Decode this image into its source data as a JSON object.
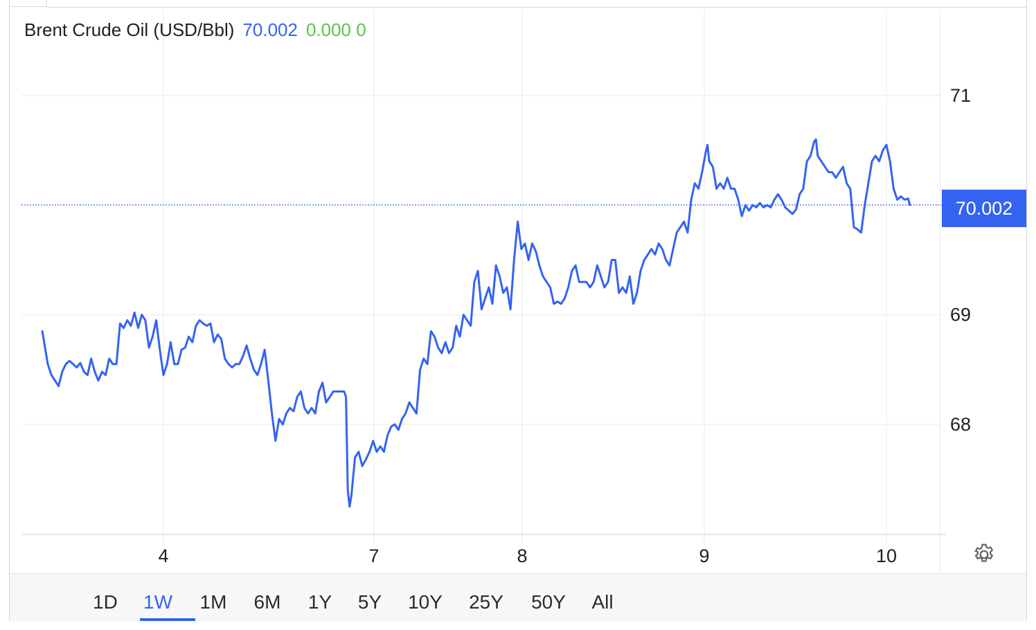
{
  "header": {
    "title": "Brent Crude Oil (USD/Bbl)",
    "last_value": "70.002",
    "change": "0.000",
    "change_pct": "0"
  },
  "price_tag": "70.002",
  "range_selector": {
    "options": [
      "1D",
      "1W",
      "1M",
      "6M",
      "1Y",
      "5Y",
      "10Y",
      "25Y",
      "50Y",
      "All"
    ],
    "selected": "1W"
  },
  "colors": {
    "line": "#3463f0",
    "change_positive": "#5ec24b",
    "grid": "#e6e6e6"
  },
  "icons": [
    "gear-icon"
  ],
  "chart_data": {
    "type": "line",
    "title": "Brent Crude Oil (USD/Bbl)",
    "xlabel": "",
    "ylabel": "",
    "x_ticks": [
      {
        "label": "4",
        "t": 1.0
      },
      {
        "label": "7",
        "t": 2.0
      },
      {
        "label": "8",
        "t": 3.0
      },
      {
        "label": "9",
        "t": 4.0
      },
      {
        "label": "10",
        "t": 5.0
      }
    ],
    "xlim": [
      0.33,
      5.3
    ],
    "ylim": [
      67.0,
      71.5
    ],
    "y_ticks": [
      68,
      69,
      71
    ],
    "last_value_line": 70.002,
    "grid": true,
    "legend": "none",
    "series": [
      {
        "points": [
          [
            0.33,
            68.85
          ],
          [
            0.36,
            68.55
          ],
          [
            0.38,
            68.45
          ],
          [
            0.4,
            68.4
          ],
          [
            0.42,
            68.35
          ],
          [
            0.44,
            68.48
          ],
          [
            0.46,
            68.55
          ],
          [
            0.48,
            68.58
          ],
          [
            0.5,
            68.55
          ],
          [
            0.52,
            68.52
          ],
          [
            0.54,
            68.56
          ],
          [
            0.56,
            68.48
          ],
          [
            0.58,
            68.45
          ],
          [
            0.6,
            68.6
          ],
          [
            0.62,
            68.48
          ],
          [
            0.64,
            68.4
          ],
          [
            0.66,
            68.48
          ],
          [
            0.68,
            68.45
          ],
          [
            0.7,
            68.6
          ],
          [
            0.72,
            68.55
          ],
          [
            0.74,
            68.55
          ],
          [
            0.76,
            68.92
          ],
          [
            0.78,
            68.88
          ],
          [
            0.8,
            68.95
          ],
          [
            0.82,
            68.9
          ],
          [
            0.84,
            69.02
          ],
          [
            0.86,
            68.88
          ],
          [
            0.88,
            69.0
          ],
          [
            0.9,
            68.95
          ],
          [
            0.92,
            68.7
          ],
          [
            0.94,
            68.8
          ],
          [
            0.96,
            68.95
          ],
          [
            0.98,
            68.68
          ],
          [
            1.0,
            68.45
          ],
          [
            1.02,
            68.55
          ],
          [
            1.04,
            68.75
          ],
          [
            1.06,
            68.55
          ],
          [
            1.08,
            68.55
          ],
          [
            1.1,
            68.68
          ],
          [
            1.12,
            68.7
          ],
          [
            1.14,
            68.8
          ],
          [
            1.16,
            68.75
          ],
          [
            1.18,
            68.9
          ],
          [
            1.2,
            68.95
          ],
          [
            1.22,
            68.92
          ],
          [
            1.24,
            68.9
          ],
          [
            1.26,
            68.92
          ],
          [
            1.28,
            68.75
          ],
          [
            1.3,
            68.82
          ],
          [
            1.32,
            68.78
          ],
          [
            1.34,
            68.6
          ],
          [
            1.36,
            68.55
          ],
          [
            1.38,
            68.52
          ],
          [
            1.4,
            68.55
          ],
          [
            1.42,
            68.55
          ],
          [
            1.44,
            68.62
          ],
          [
            1.46,
            68.72
          ],
          [
            1.48,
            68.6
          ],
          [
            1.5,
            68.5
          ],
          [
            1.52,
            68.45
          ],
          [
            1.54,
            68.55
          ],
          [
            1.56,
            68.68
          ],
          [
            1.58,
            68.4
          ],
          [
            1.6,
            68.1
          ],
          [
            1.62,
            67.85
          ],
          [
            1.64,
            68.05
          ],
          [
            1.66,
            68.0
          ],
          [
            1.68,
            68.1
          ],
          [
            1.7,
            68.15
          ],
          [
            1.72,
            68.12
          ],
          [
            1.74,
            68.25
          ],
          [
            1.76,
            68.3
          ],
          [
            1.78,
            68.15
          ],
          [
            1.8,
            68.1
          ],
          [
            1.82,
            68.15
          ],
          [
            1.84,
            68.1
          ],
          [
            1.86,
            68.3
          ],
          [
            1.88,
            68.38
          ],
          [
            1.9,
            68.2
          ],
          [
            1.92,
            68.25
          ],
          [
            1.94,
            68.3
          ],
          [
            1.96,
            68.3
          ],
          [
            1.98,
            68.3
          ],
          [
            2.0,
            68.3
          ],
          [
            2.01,
            68.25
          ],
          [
            2.02,
            67.4
          ],
          [
            2.03,
            67.25
          ],
          [
            2.04,
            67.35
          ],
          [
            2.06,
            67.7
          ],
          [
            2.08,
            67.75
          ],
          [
            2.1,
            67.62
          ],
          [
            2.12,
            67.68
          ],
          [
            2.14,
            67.75
          ],
          [
            2.16,
            67.85
          ],
          [
            2.18,
            67.75
          ],
          [
            2.2,
            67.8
          ],
          [
            2.22,
            67.75
          ],
          [
            2.24,
            67.9
          ],
          [
            2.26,
            67.98
          ],
          [
            2.28,
            68.0
          ],
          [
            2.3,
            67.95
          ],
          [
            2.32,
            68.05
          ],
          [
            2.34,
            68.1
          ],
          [
            2.36,
            68.2
          ],
          [
            2.38,
            68.15
          ],
          [
            2.4,
            68.1
          ],
          [
            2.42,
            68.5
          ],
          [
            2.44,
            68.6
          ],
          [
            2.46,
            68.55
          ],
          [
            2.48,
            68.85
          ],
          [
            2.5,
            68.8
          ],
          [
            2.52,
            68.7
          ],
          [
            2.54,
            68.65
          ],
          [
            2.56,
            68.75
          ],
          [
            2.58,
            68.65
          ],
          [
            2.6,
            68.7
          ],
          [
            2.62,
            68.9
          ],
          [
            2.64,
            68.8
          ],
          [
            2.66,
            69.0
          ],
          [
            2.68,
            68.95
          ],
          [
            2.7,
            68.9
          ],
          [
            2.72,
            69.3
          ],
          [
            2.74,
            69.4
          ],
          [
            2.76,
            69.05
          ],
          [
            2.78,
            69.15
          ],
          [
            2.8,
            69.25
          ],
          [
            2.82,
            69.1
          ],
          [
            2.84,
            69.45
          ],
          [
            2.86,
            69.35
          ],
          [
            2.88,
            69.2
          ],
          [
            2.9,
            69.25
          ],
          [
            2.92,
            69.05
          ],
          [
            2.94,
            69.5
          ],
          [
            2.96,
            69.85
          ],
          [
            2.98,
            69.6
          ],
          [
            3.0,
            69.65
          ],
          [
            3.02,
            69.5
          ],
          [
            3.04,
            69.65
          ],
          [
            3.06,
            69.58
          ],
          [
            3.08,
            69.45
          ],
          [
            3.1,
            69.35
          ],
          [
            3.12,
            69.3
          ],
          [
            3.14,
            69.25
          ],
          [
            3.16,
            69.1
          ],
          [
            3.18,
            69.12
          ],
          [
            3.2,
            69.1
          ],
          [
            3.22,
            69.15
          ],
          [
            3.24,
            69.25
          ],
          [
            3.26,
            69.4
          ],
          [
            3.28,
            69.45
          ],
          [
            3.3,
            69.3
          ],
          [
            3.32,
            69.3
          ],
          [
            3.34,
            69.3
          ],
          [
            3.36,
            69.25
          ],
          [
            3.38,
            69.3
          ],
          [
            3.4,
            69.45
          ],
          [
            3.42,
            69.35
          ],
          [
            3.44,
            69.25
          ],
          [
            3.46,
            69.3
          ],
          [
            3.48,
            69.5
          ],
          [
            3.5,
            69.5
          ],
          [
            3.52,
            69.2
          ],
          [
            3.54,
            69.25
          ],
          [
            3.56,
            69.2
          ],
          [
            3.58,
            69.35
          ],
          [
            3.6,
            69.1
          ],
          [
            3.62,
            69.2
          ],
          [
            3.64,
            69.4
          ],
          [
            3.66,
            69.5
          ],
          [
            3.68,
            69.55
          ],
          [
            3.7,
            69.6
          ],
          [
            3.72,
            69.55
          ],
          [
            3.74,
            69.65
          ],
          [
            3.76,
            69.6
          ],
          [
            3.78,
            69.5
          ],
          [
            3.8,
            69.45
          ],
          [
            3.82,
            69.6
          ],
          [
            3.84,
            69.75
          ],
          [
            3.86,
            69.8
          ],
          [
            3.88,
            69.85
          ],
          [
            3.9,
            69.75
          ],
          [
            3.92,
            70.05
          ],
          [
            3.94,
            70.2
          ],
          [
            3.96,
            70.15
          ],
          [
            3.98,
            70.3
          ],
          [
            4.0,
            70.48
          ],
          [
            4.01,
            70.55
          ],
          [
            4.02,
            70.4
          ],
          [
            4.04,
            70.35
          ],
          [
            4.06,
            70.15
          ],
          [
            4.08,
            70.2
          ],
          [
            4.1,
            70.15
          ],
          [
            4.12,
            70.25
          ],
          [
            4.14,
            70.15
          ],
          [
            4.16,
            70.15
          ],
          [
            4.18,
            70.05
          ],
          [
            4.2,
            69.9
          ],
          [
            4.22,
            70.0
          ],
          [
            4.24,
            69.95
          ],
          [
            4.26,
            70.0
          ],
          [
            4.28,
            69.98
          ],
          [
            4.3,
            70.02
          ],
          [
            4.32,
            69.98
          ],
          [
            4.34,
            70.0
          ],
          [
            4.36,
            69.98
          ],
          [
            4.38,
            70.05
          ],
          [
            4.4,
            70.1
          ],
          [
            4.42,
            70.05
          ],
          [
            4.44,
            69.98
          ],
          [
            4.46,
            69.95
          ],
          [
            4.48,
            69.92
          ],
          [
            4.5,
            69.96
          ],
          [
            4.52,
            70.1
          ],
          [
            4.54,
            70.15
          ],
          [
            4.56,
            70.4
          ],
          [
            4.58,
            70.45
          ],
          [
            4.6,
            70.58
          ],
          [
            4.61,
            70.6
          ],
          [
            4.62,
            70.45
          ],
          [
            4.64,
            70.4
          ],
          [
            4.66,
            70.35
          ],
          [
            4.68,
            70.3
          ],
          [
            4.7,
            70.3
          ],
          [
            4.72,
            70.25
          ],
          [
            4.74,
            70.3
          ],
          [
            4.76,
            70.35
          ],
          [
            4.78,
            70.2
          ],
          [
            4.8,
            70.15
          ],
          [
            4.82,
            69.8
          ],
          [
            4.84,
            69.78
          ],
          [
            4.86,
            69.75
          ],
          [
            4.88,
            70.0
          ],
          [
            4.9,
            70.2
          ],
          [
            4.92,
            70.4
          ],
          [
            4.94,
            70.45
          ],
          [
            4.96,
            70.4
          ],
          [
            4.98,
            70.5
          ],
          [
            5.0,
            70.55
          ],
          [
            5.02,
            70.4
          ],
          [
            5.04,
            70.15
          ],
          [
            5.06,
            70.05
          ],
          [
            5.08,
            70.08
          ],
          [
            5.1,
            70.05
          ],
          [
            5.12,
            70.06
          ],
          [
            5.13,
            70.002
          ]
        ]
      }
    ]
  }
}
